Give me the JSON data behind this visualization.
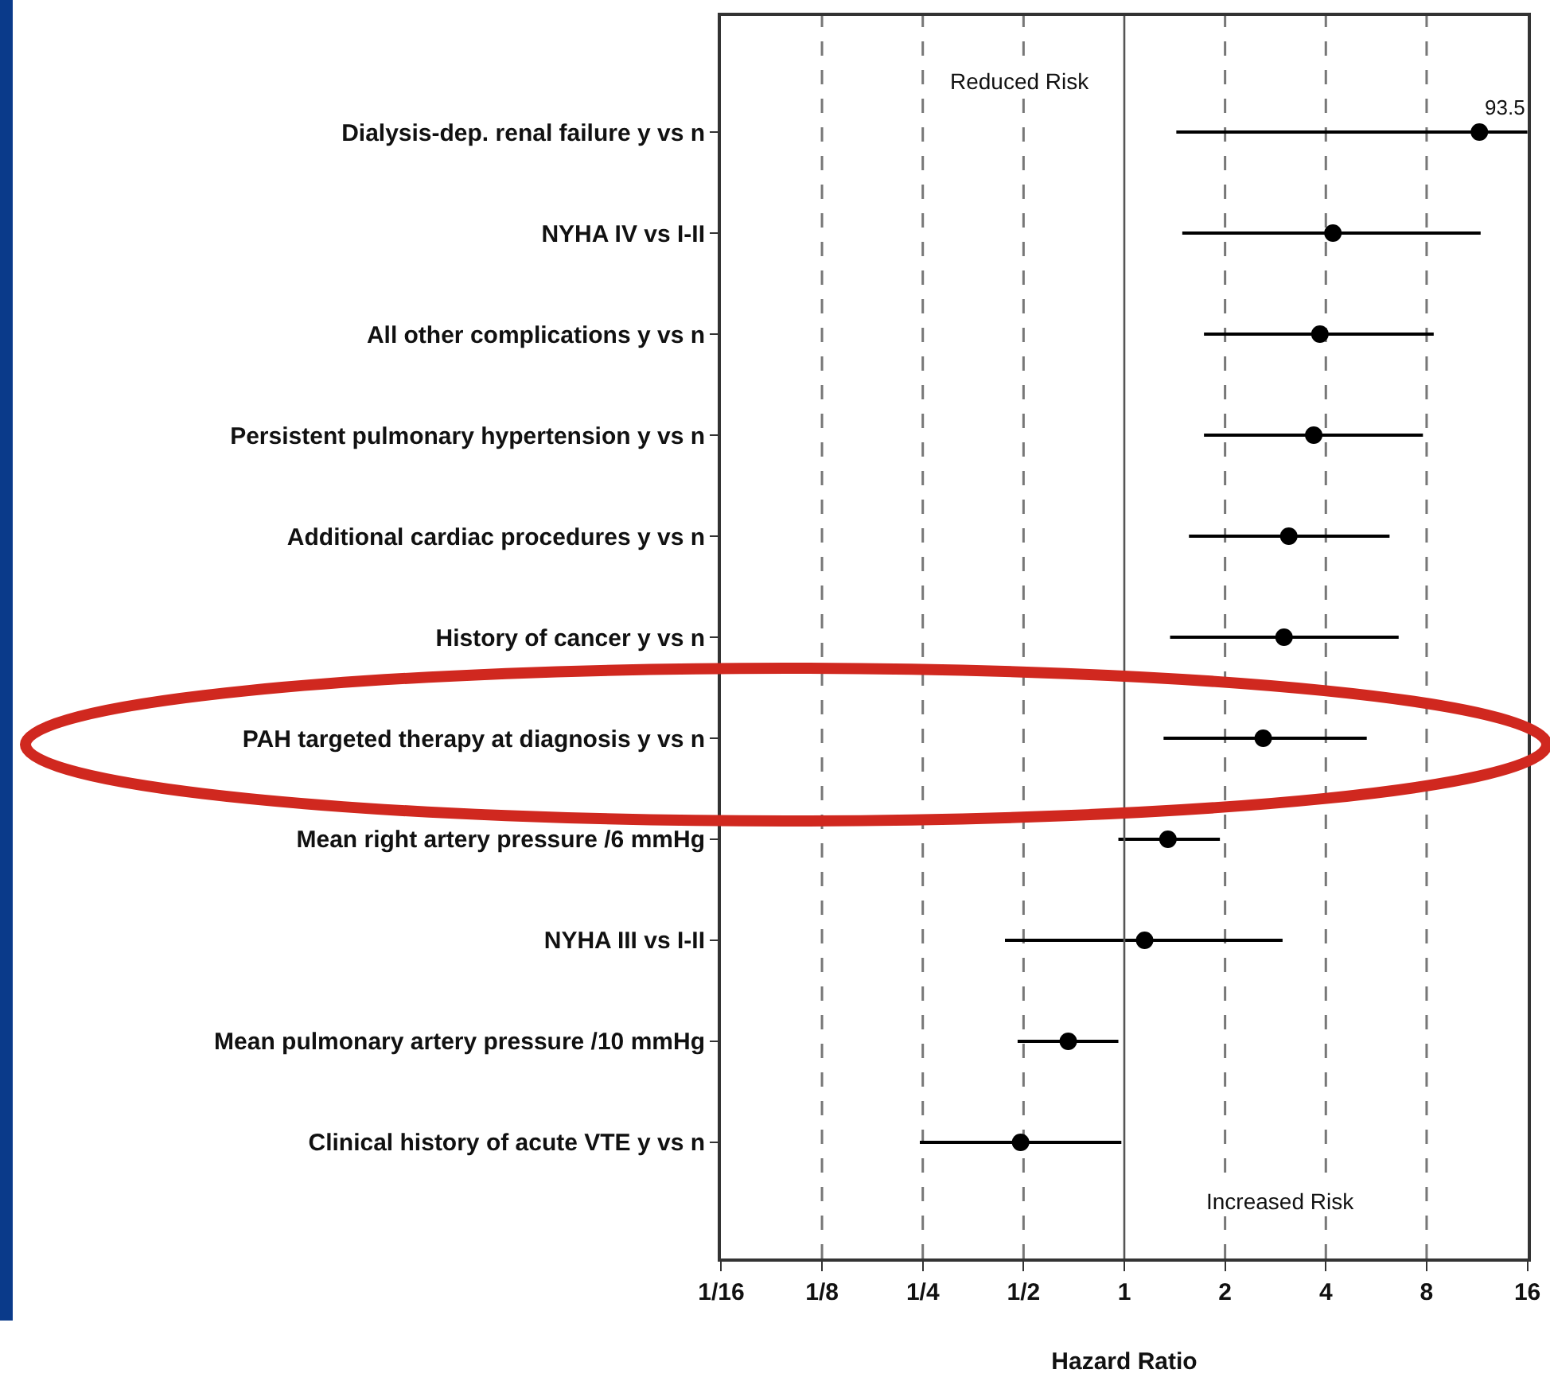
{
  "chart_data": {
    "type": "scatter",
    "categories": [
      null,
      "Dialysis-dep. renal failure y vs n",
      "NYHA IV vs I-II",
      "All other complications y vs n",
      "Persistent pulmonary hypertension y vs n",
      "Additional cardiac procedures y vs n",
      "History of cancer y vs n",
      "PAH targeted therapy at diagnosis y vs n",
      "Mean right artery pressure /6 mmHg",
      "NYHA III vs I-II",
      "Mean pulmonary artery pressure /10 mmHg",
      "Clinical history of acute VTE y vs n",
      null
    ],
    "values": [
      null,
      11.5,
      4.2,
      3.84,
      3.68,
      3.1,
      3.0,
      2.6,
      1.35,
      1.15,
      0.68,
      0.49,
      null
    ],
    "errors": [
      null,
      [
        1.43,
        16
      ],
      [
        1.49,
        11.6
      ],
      [
        1.73,
        8.4
      ],
      [
        1.73,
        7.8
      ],
      [
        1.56,
        6.2
      ],
      [
        1.37,
        6.6
      ],
      [
        1.31,
        5.3
      ],
      [
        0.96,
        1.93
      ],
      [
        0.44,
        2.97
      ],
      [
        0.48,
        0.96
      ],
      [
        0.245,
        0.98
      ],
      null
    ],
    "color": "#000000",
    "marker": "circle",
    "orientation": "horizontal",
    "xlabel": "Hazard Ratio",
    "xlim": [
      0.0625,
      16
    ],
    "xticks": [
      {
        "value": 0.0625,
        "label": "1/16"
      },
      {
        "value": 0.125,
        "label": "1/8"
      },
      {
        "value": 0.25,
        "label": "1/4"
      },
      {
        "value": 0.5,
        "label": "1/2"
      },
      1,
      2,
      4,
      8,
      16
    ],
    "log": "x",
    "grid": "x",
    "ref_lines": [
      {
        "axis": "x",
        "value": 1,
        "color": "#555555"
      }
    ],
    "annotations": [
      "Reduced Risk",
      "Increased Risk",
      {
        "text": "93.5",
        "x": 16,
        "y": "Dialysis-dep. renal failure y vs n"
      }
    ]
  }
}
